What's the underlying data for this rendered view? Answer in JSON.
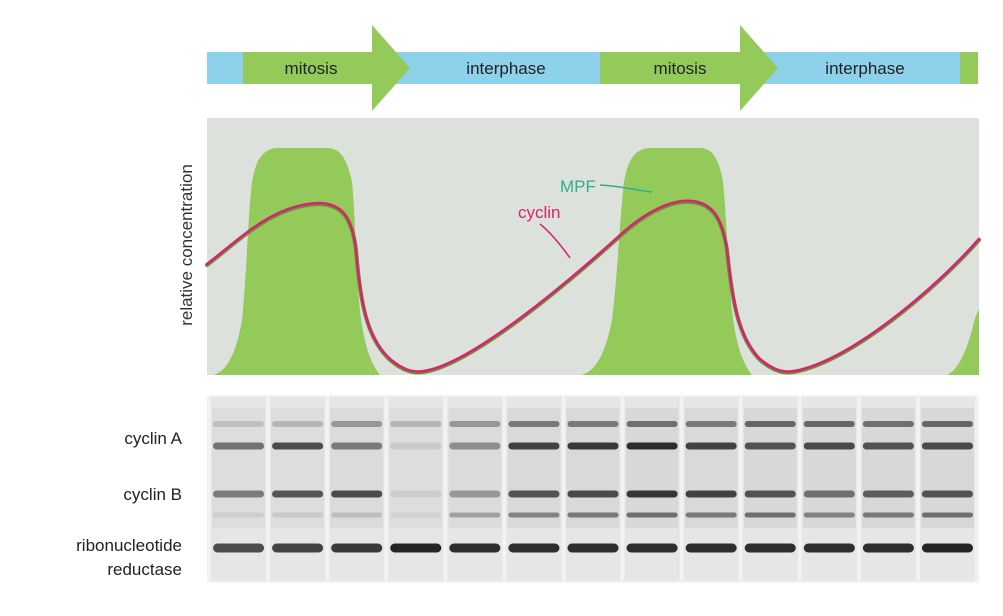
{
  "phase_bar": {
    "segments": [
      {
        "label": "",
        "color": "#8ed1ea"
      },
      {
        "label": "mitosis",
        "color": "#94ca5a"
      },
      {
        "label": "interphase",
        "color": "#8ed1ea"
      },
      {
        "label": "mitosis",
        "color": "#94ca5a"
      },
      {
        "label": "interphase",
        "color": "#8ed1ea"
      },
      {
        "label": "",
        "color": "#94ca5a"
      }
    ]
  },
  "graph": {
    "ylabel": "relative concentration",
    "mpf_label": "MPF",
    "cyclin_label": "cyclin",
    "colors": {
      "panel": "#dde1dc",
      "mpf_fill": "#94ca5a",
      "mpf_text": "#2fae8a",
      "cyclin_line": "#d6246e",
      "cyclin_shadow": "#6d8f3a"
    }
  },
  "gel": {
    "band_labels": [
      "cyclin A",
      "cyclin B",
      "ribonucleotide",
      "reductase"
    ],
    "lanes": 13,
    "band_intensities": {
      "cyclin_A_lower": [
        0.55,
        0.75,
        0.5,
        0.1,
        0.4,
        0.8,
        0.85,
        0.9,
        0.8,
        0.7,
        0.75,
        0.7,
        0.75
      ],
      "cyclin_A_upper": [
        0.15,
        0.2,
        0.35,
        0.2,
        0.35,
        0.5,
        0.5,
        0.55,
        0.5,
        0.6,
        0.6,
        0.55,
        0.6
      ],
      "cyclin_B": [
        0.5,
        0.7,
        0.75,
        0.08,
        0.35,
        0.7,
        0.75,
        0.85,
        0.8,
        0.7,
        0.55,
        0.65,
        0.7
      ],
      "cyclin_B_lower": [
        0.08,
        0.1,
        0.15,
        0.05,
        0.3,
        0.45,
        0.5,
        0.55,
        0.5,
        0.55,
        0.45,
        0.5,
        0.55
      ],
      "ribonucleotide_reductase": [
        0.75,
        0.8,
        0.85,
        0.95,
        0.9,
        0.9,
        0.9,
        0.9,
        0.9,
        0.9,
        0.9,
        0.9,
        0.95
      ]
    }
  }
}
